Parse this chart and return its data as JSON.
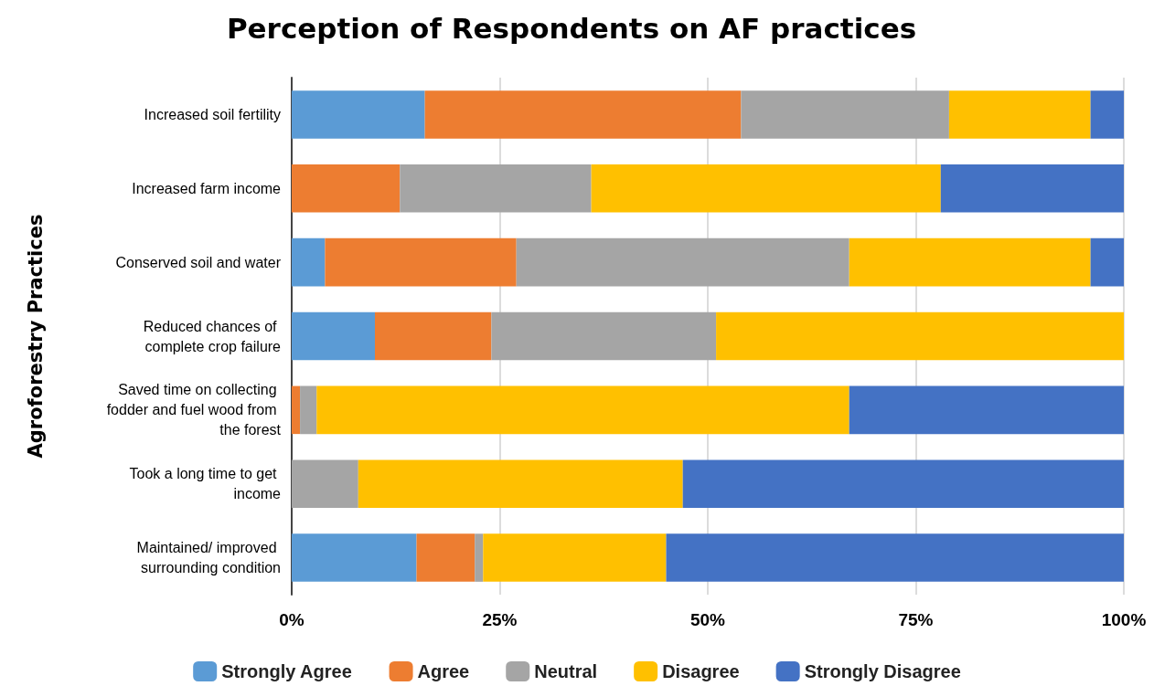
{
  "chart_data": {
    "type": "bar",
    "orientation": "horizontal",
    "stacked": true,
    "title": "Perception of Respondents on AF practices",
    "ylabel": "Agroforestry Practices",
    "categories": [
      "Increased soil fertility",
      "Increased farm income",
      "Conserved soil and water",
      "Reduced chances of complete crop failure",
      "Saved time on collecting fodder and fuel wood from the forest",
      "Took a long time to get income",
      "Maintained/ improved surrounding condition"
    ],
    "series": [
      {
        "name": "Strongly Agree",
        "color": "#5b9bd5",
        "values": [
          16,
          0,
          4,
          10,
          0,
          0,
          15
        ]
      },
      {
        "name": "Agree",
        "color": "#ed7d31",
        "values": [
          38,
          13,
          23,
          14,
          1,
          0,
          7
        ]
      },
      {
        "name": "Neutral",
        "color": "#a5a5a5",
        "values": [
          25,
          23,
          40,
          27,
          2,
          8,
          1
        ]
      },
      {
        "name": "Disagree",
        "color": "#ffc000",
        "values": [
          17,
          42,
          29,
          49,
          64,
          39,
          22
        ]
      },
      {
        "name": "Strongly Disagree",
        "color": "#4472c4",
        "values": [
          4,
          22,
          4,
          0,
          33,
          53,
          55
        ]
      }
    ],
    "xlim": [
      0,
      100
    ],
    "xticks": [
      {
        "value": 0,
        "label": "0%"
      },
      {
        "value": 25,
        "label": "25%"
      },
      {
        "value": 50,
        "label": "50%"
      },
      {
        "value": 75,
        "label": "75%"
      },
      {
        "value": 100,
        "label": "100%"
      }
    ],
    "grid": "x",
    "legend": "bottom"
  }
}
